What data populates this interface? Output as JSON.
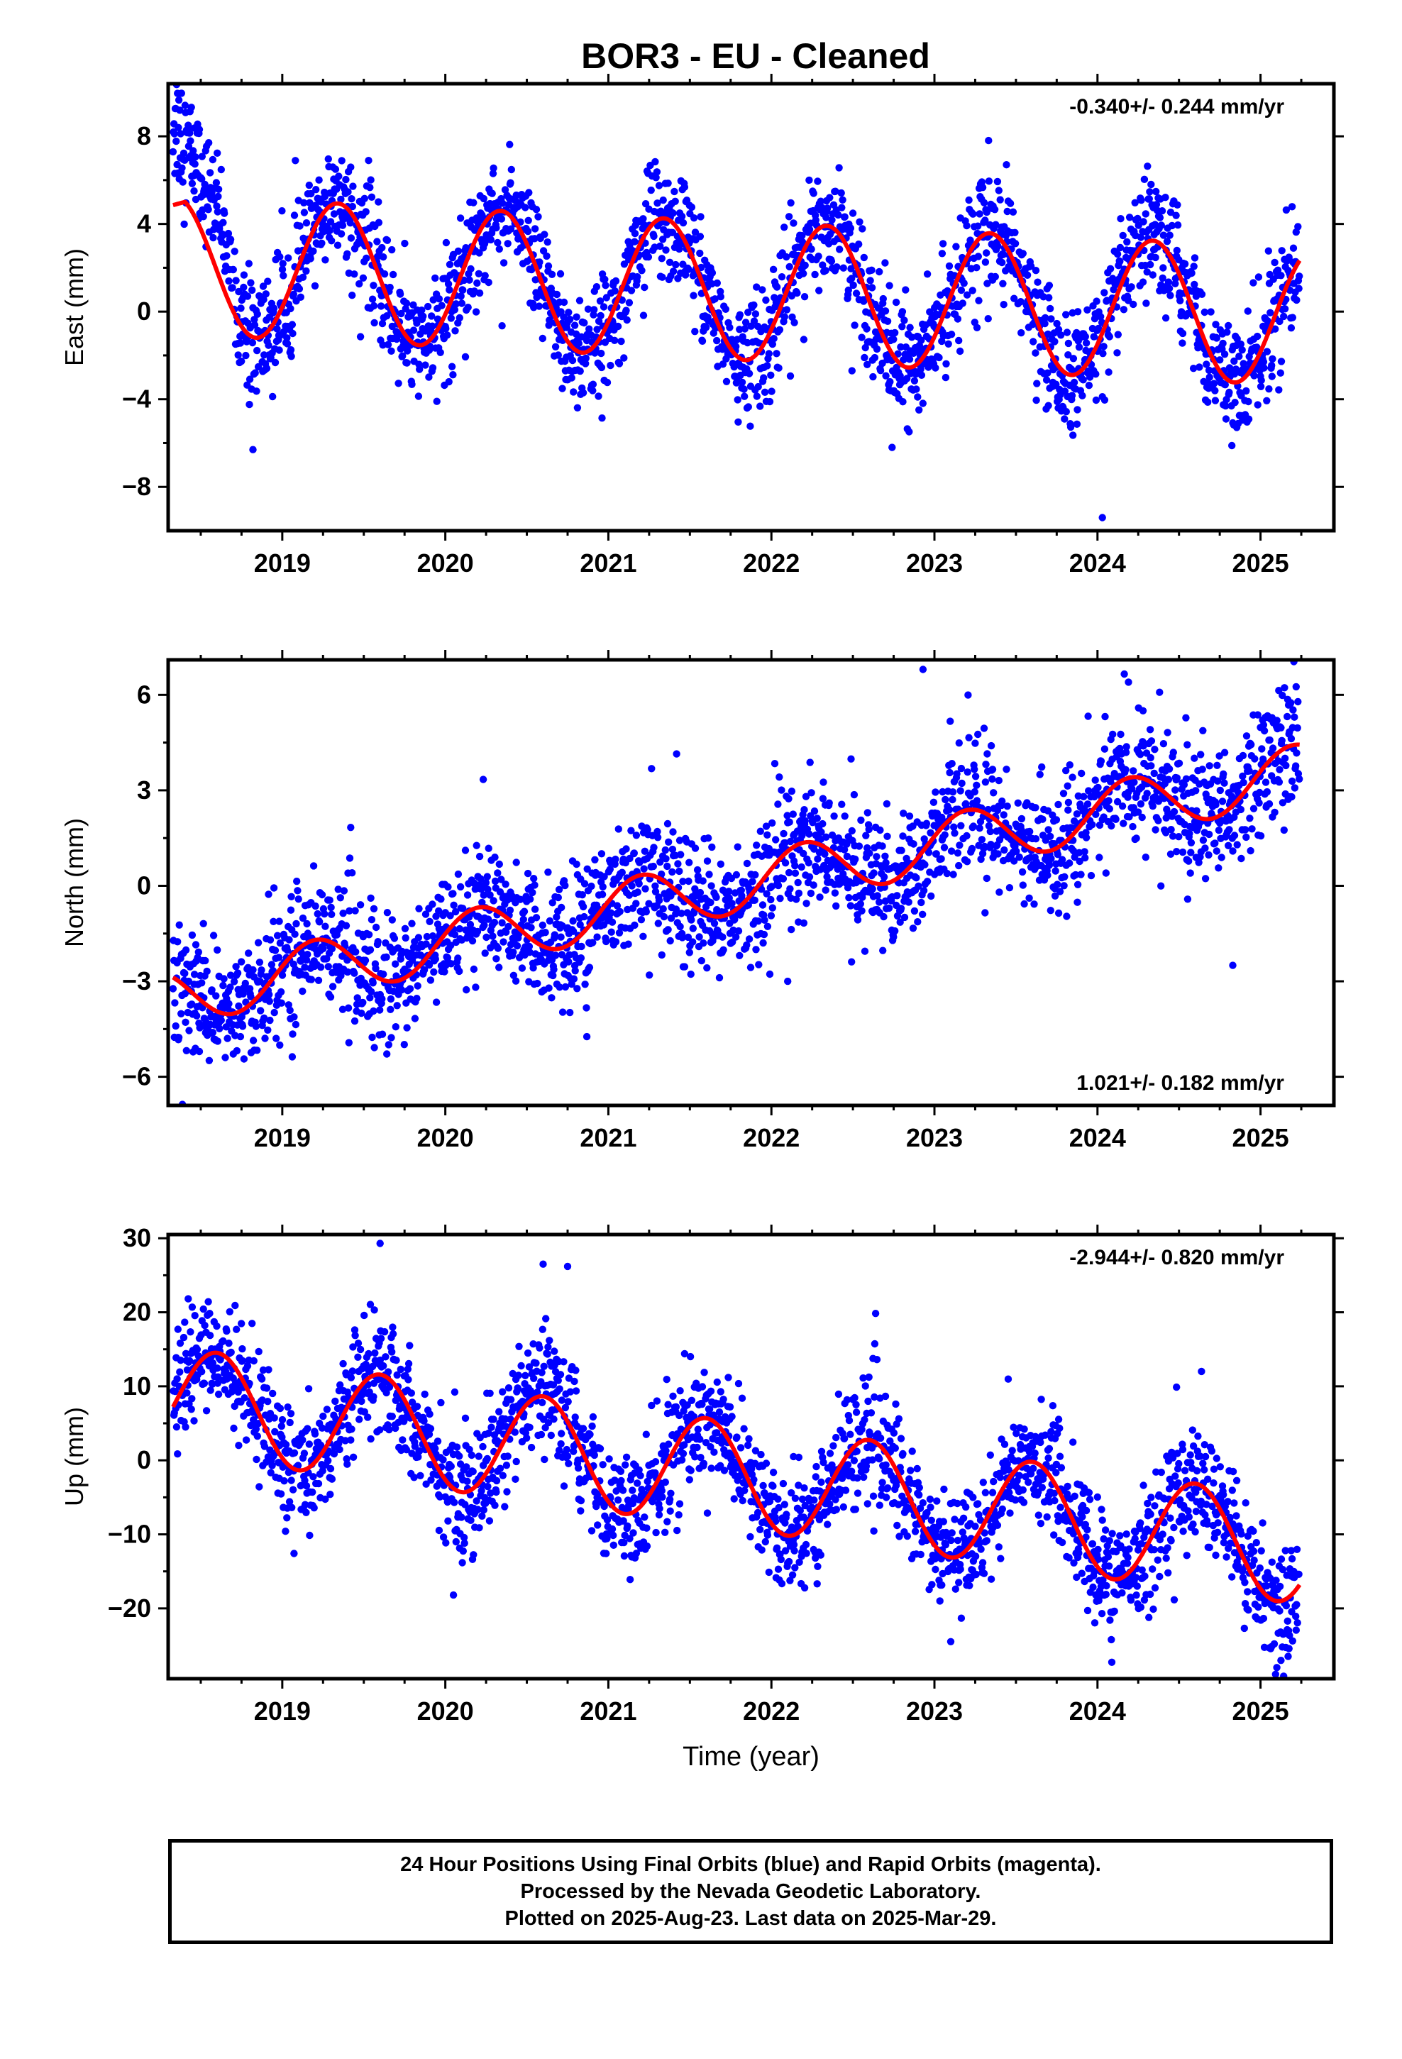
{
  "title": "BOR3  - EU - Cleaned",
  "footer": {
    "line1": "24 Hour Positions Using Final Orbits (blue) and Rapid Orbits (magenta).",
    "line2": "Processed by the Nevada Geodetic Laboratory.",
    "line3": "Plotted on 2025-Aug-23. Last data on 2025-Mar-29."
  },
  "colors": {
    "data_points": "#0000ff",
    "model_fit": "#ff0000",
    "axes": "#000000"
  },
  "chart_data": [
    {
      "type": "scatter",
      "name": "east",
      "ylabel": "East (mm)",
      "xlabel": "",
      "rate_label": "-0.340+/- 0.244 mm/yr",
      "rate_position": "top-right",
      "xlim": [
        2018.3,
        2025.45
      ],
      "ylim": [
        -10,
        10.4
      ],
      "yticks": [
        -8,
        -4,
        0,
        4,
        8
      ],
      "xticks": [
        2019,
        2020,
        2021,
        2022,
        2023,
        2024,
        2025
      ],
      "model": {
        "rate": -0.34,
        "offset": 0.95,
        "annual_amp": 3.15,
        "peak_time": 2019.34,
        "t0": 2021.8
      },
      "early_transient": [
        [
          2018.32,
          9.0
        ],
        [
          2018.4,
          7.8
        ],
        [
          2018.5,
          6.3
        ],
        [
          2018.6,
          4.6
        ],
        [
          2018.72,
          1.0
        ]
      ],
      "noise_sd": 1.25,
      "data_start": 2018.33,
      "data_end": 2025.24,
      "gaps": [],
      "outliers": [
        [
          2024.03,
          -9.4
        ],
        [
          2022.74,
          -6.2
        ],
        [
          2018.82,
          -6.3
        ]
      ]
    },
    {
      "type": "scatter",
      "name": "north",
      "ylabel": "North (mm)",
      "xlabel": "",
      "rate_label": "1.021+/- 0.182 mm/yr",
      "rate_position": "bottom-right",
      "xlim": [
        2018.3,
        2025.45
      ],
      "ylim": [
        -6.9,
        7.1
      ],
      "yticks": [
        -6,
        -3,
        0,
        3,
        6
      ],
      "xticks": [
        2019,
        2020,
        2021,
        2022,
        2023,
        2024,
        2025
      ],
      "model": {
        "rate": 1.021,
        "offset": 0.05,
        "annual_amp": 0.9,
        "peak_time": 2019.2,
        "t0": 2021.8
      },
      "early_transient": [],
      "noise_sd": 0.95,
      "data_start": 2018.33,
      "data_end": 2025.24,
      "gaps": [],
      "outliers": [
        [
          2022.93,
          6.8
        ],
        [
          2024.83,
          -2.5
        ],
        [
          2022.1,
          -3.0
        ],
        [
          2024.19,
          6.4
        ]
      ]
    },
    {
      "type": "scatter",
      "name": "up",
      "ylabel": "Up (mm)",
      "xlabel": "Time (year)",
      "rate_label": "-2.944+/- 0.820 mm/yr",
      "rate_position": "top-right",
      "xlim": [
        2018.3,
        2025.45
      ],
      "ylim": [
        -29.5,
        30.5
      ],
      "yticks": [
        -20,
        -10,
        0,
        10,
        20,
        30
      ],
      "xticks": [
        2019,
        2020,
        2021,
        2022,
        2023,
        2024,
        2025
      ],
      "model": {
        "rate": -2.944,
        "offset": -2.1,
        "annual_amp": 7.2,
        "peak_time": 2018.6,
        "t0": 2021.8
      },
      "early_transient": [],
      "noise_sd": 3.8,
      "data_start": 2018.33,
      "data_end": 2025.24,
      "gaps": [],
      "outliers": [
        [
          2019.6,
          29.3
        ],
        [
          2020.6,
          26.5
        ],
        [
          2020.75,
          26.2
        ],
        [
          2020.05,
          -18.2
        ],
        [
          2025.1,
          -28.0
        ],
        [
          2023.1,
          -24.5
        ]
      ]
    }
  ]
}
